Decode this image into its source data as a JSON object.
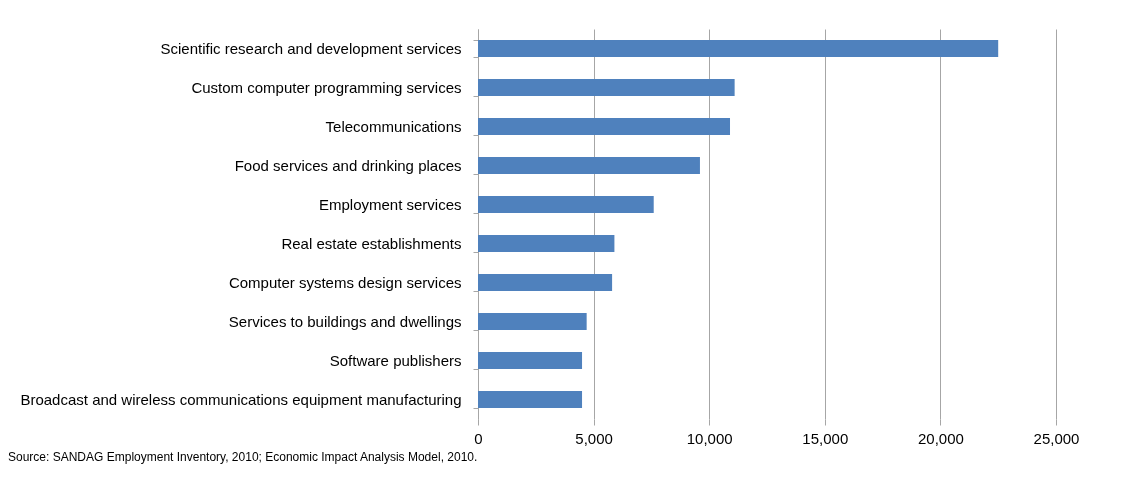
{
  "chart_data": {
    "type": "bar",
    "orientation": "horizontal",
    "categories": [
      "Scientific research and development services",
      "Custom computer programming services",
      "Telecommunications",
      "Food services and drinking places",
      "Employment services",
      "Real estate establishments",
      "Computer systems design services",
      "Services to buildings and dwellings",
      "Software publishers",
      "Broadcast and wireless communications equipment manufacturing"
    ],
    "values": [
      22500,
      11100,
      10900,
      9600,
      7600,
      5900,
      5800,
      4700,
      4500,
      4500
    ],
    "color": "#4f81bd",
    "xlim": [
      0,
      25000
    ],
    "xticks": [
      {
        "value": 0,
        "label": "0"
      },
      {
        "value": 5000,
        "label": "5,000"
      },
      {
        "value": 10000,
        "label": "10,000"
      },
      {
        "value": 15000,
        "label": "15,000"
      },
      {
        "value": 20000,
        "label": "20,000"
      },
      {
        "value": 25000,
        "label": "25,000"
      }
    ],
    "grid": "x",
    "annotations": [
      "Source: SANDAG Employment Inventory, 2010; Economic Impact Analysis Model, 2010."
    ]
  }
}
